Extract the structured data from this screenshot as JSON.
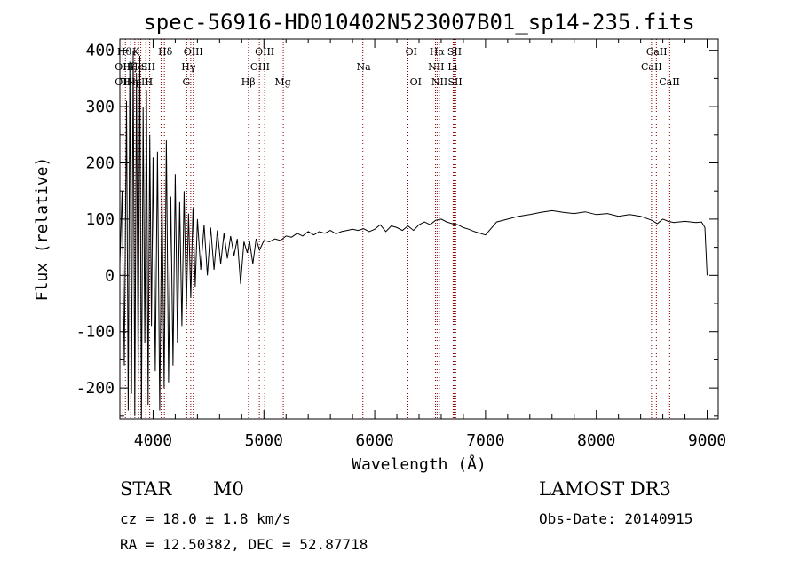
{
  "chart_data": {
    "type": "line",
    "title": "spec-56916-HD010402N523007B01_sp14-235.fits",
    "xlabel": "Wavelength (Å)",
    "ylabel": "Flux (relative)",
    "xlim": [
      3700,
      9100
    ],
    "ylim": [
      -255,
      420
    ],
    "xticks": [
      4000,
      5000,
      6000,
      7000,
      8000,
      9000
    ],
    "yticks": [
      -200,
      -100,
      0,
      100,
      200,
      300,
      400
    ],
    "grid": false,
    "series": [
      {
        "name": "flux",
        "x": [
          3700,
          3720,
          3740,
          3760,
          3775,
          3790,
          3805,
          3820,
          3835,
          3850,
          3865,
          3880,
          3895,
          3910,
          3925,
          3940,
          3955,
          3970,
          3985,
          4000,
          4020,
          4040,
          4060,
          4080,
          4100,
          4120,
          4140,
          4160,
          4180,
          4200,
          4220,
          4240,
          4260,
          4280,
          4300,
          4320,
          4340,
          4360,
          4380,
          4400,
          4430,
          4460,
          4490,
          4520,
          4550,
          4580,
          4610,
          4640,
          4670,
          4700,
          4730,
          4760,
          4790,
          4820,
          4850,
          4870,
          4900,
          4930,
          4960,
          5000,
          5050,
          5100,
          5150,
          5200,
          5250,
          5300,
          5350,
          5400,
          5450,
          5500,
          5550,
          5600,
          5650,
          5700,
          5750,
          5800,
          5850,
          5900,
          5950,
          6000,
          6050,
          6100,
          6150,
          6200,
          6250,
          6300,
          6350,
          6400,
          6450,
          6500,
          6550,
          6600,
          6650,
          6700,
          6750,
          6800,
          6850,
          6900,
          6950,
          7000,
          7100,
          7200,
          7300,
          7400,
          7500,
          7600,
          7700,
          7800,
          7900,
          8000,
          8100,
          8200,
          8300,
          8400,
          8500,
          8550,
          8600,
          8650,
          8700,
          8800,
          8900,
          8950,
          8980,
          9000
        ],
        "values": [
          20,
          150,
          -160,
          310,
          -240,
          380,
          -210,
          400,
          -250,
          360,
          -180,
          390,
          -260,
          300,
          -120,
          330,
          -230,
          250,
          -90,
          210,
          -170,
          220,
          -240,
          160,
          -200,
          240,
          -190,
          140,
          -160,
          180,
          -120,
          130,
          -90,
          150,
          -60,
          110,
          -40,
          120,
          -20,
          100,
          10,
          90,
          0,
          85,
          10,
          80,
          20,
          75,
          30,
          70,
          35,
          65,
          -15,
          60,
          40,
          62,
          20,
          65,
          45,
          62,
          60,
          65,
          62,
          70,
          68,
          75,
          70,
          78,
          72,
          78,
          75,
          80,
          74,
          78,
          80,
          82,
          80,
          83,
          78,
          82,
          90,
          78,
          88,
          85,
          80,
          88,
          80,
          90,
          95,
          90,
          98,
          100,
          95,
          92,
          90,
          85,
          82,
          78,
          75,
          72,
          95,
          100,
          105,
          108,
          112,
          115,
          112,
          110,
          113,
          108,
          110,
          105,
          108,
          105,
          98,
          92,
          100,
          96,
          94,
          96,
          94,
          95,
          85,
          0
        ]
      }
    ],
    "lines": [
      {
        "wl": 3727,
        "labels": [
          "OII"
        ]
      },
      {
        "wl": 3750,
        "labels": [
          "Hθ"
        ]
      },
      {
        "wl": 3798,
        "labels": [
          "Hη"
        ]
      },
      {
        "wl": 3835,
        "labels": [
          "Hζ"
        ]
      },
      {
        "wl": 3869,
        "labels": [
          "NeIII"
        ]
      },
      {
        "wl": 3889,
        "labels": [
          "HeI"
        ]
      },
      {
        "wl": 3934,
        "labels": [
          "K"
        ]
      },
      {
        "wl": 3969,
        "labels": [
          "H"
        ]
      },
      {
        "wl": 4072,
        "labels": [
          "SII"
        ]
      },
      {
        "wl": 4102,
        "labels": [
          "Hδ"
        ]
      },
      {
        "wl": 4304,
        "labels": [
          "G"
        ]
      },
      {
        "wl": 4340,
        "labels": [
          "Hγ"
        ]
      },
      {
        "wl": 4363,
        "labels": [
          "OIII"
        ]
      },
      {
        "wl": 4861,
        "labels": [
          "Hβ"
        ]
      },
      {
        "wl": 4959,
        "labels": [
          "OIII"
        ]
      },
      {
        "wl": 5007,
        "labels": [
          "OIII"
        ]
      },
      {
        "wl": 5175,
        "labels": [
          "Mg"
        ]
      },
      {
        "wl": 5893,
        "labels": [
          "Na"
        ]
      },
      {
        "wl": 6300,
        "labels": [
          "OI"
        ]
      },
      {
        "wl": 6364,
        "labels": [
          "OI"
        ]
      },
      {
        "wl": 6548,
        "labels": [
          "NII"
        ]
      },
      {
        "wl": 6563,
        "labels": [
          "Hα"
        ]
      },
      {
        "wl": 6583,
        "labels": [
          "NII"
        ]
      },
      {
        "wl": 6708,
        "labels": [
          "Li"
        ]
      },
      {
        "wl": 6716,
        "labels": [
          "SII"
        ]
      },
      {
        "wl": 6731,
        "labels": [
          "SII"
        ]
      },
      {
        "wl": 8498,
        "labels": [
          "CaII"
        ]
      },
      {
        "wl": 8542,
        "labels": [
          "CaII"
        ]
      },
      {
        "wl": 8662,
        "labels": [
          "CaII"
        ]
      }
    ],
    "lineLabelRows": [
      [
        {
          "wl": 3740,
          "text": "Hθ"
        },
        {
          "wl": 3845,
          "text": "K"
        },
        {
          "wl": 4110,
          "text": "Hδ"
        },
        {
          "wl": 4363,
          "text": "OIII"
        },
        {
          "wl": 5007,
          "text": "OIII"
        },
        {
          "wl": 6330,
          "text": "OI"
        },
        {
          "wl": 6563,
          "text": "Hα"
        },
        {
          "wl": 6720,
          "text": "SII"
        },
        {
          "wl": 8545,
          "text": "CaII"
        }
      ],
      [
        {
          "wl": 3725,
          "text": "OII"
        },
        {
          "wl": 3790,
          "text": "Hζ"
        },
        {
          "wl": 3870,
          "text": "HeI"
        },
        {
          "wl": 3955,
          "text": "SII"
        },
        {
          "wl": 4320,
          "text": "Hγ"
        },
        {
          "wl": 4965,
          "text": "OIII"
        },
        {
          "wl": 5900,
          "text": "Na"
        },
        {
          "wl": 6555,
          "text": "NII"
        },
        {
          "wl": 6703,
          "text": "Li"
        },
        {
          "wl": 8498,
          "text": "CaII"
        }
      ],
      [
        {
          "wl": 3725,
          "text": "OII"
        },
        {
          "wl": 3800,
          "text": "Hη"
        },
        {
          "wl": 3880,
          "text": "NeIII"
        },
        {
          "wl": 3960,
          "text": "H"
        },
        {
          "wl": 4300,
          "text": "G"
        },
        {
          "wl": 4860,
          "text": "Hβ"
        },
        {
          "wl": 5170,
          "text": "Mg"
        },
        {
          "wl": 6370,
          "text": "OI"
        },
        {
          "wl": 6585,
          "text": "NII"
        },
        {
          "wl": 6725,
          "text": "SII"
        },
        {
          "wl": 8660,
          "text": "CaII"
        }
      ]
    ]
  },
  "info": {
    "object_class": "STAR",
    "subclass": "M0",
    "survey": "LAMOST DR3",
    "redshift_line": "cz = 18.0 ± 1.8 km/s",
    "obs_date_line": "Obs-Date: 20140915",
    "coords_line": "RA =  12.50382, DEC =  52.87718"
  },
  "colors": {
    "spectrum": "#000000",
    "line_markers": "#8b0000",
    "background": "#ffffff"
  }
}
